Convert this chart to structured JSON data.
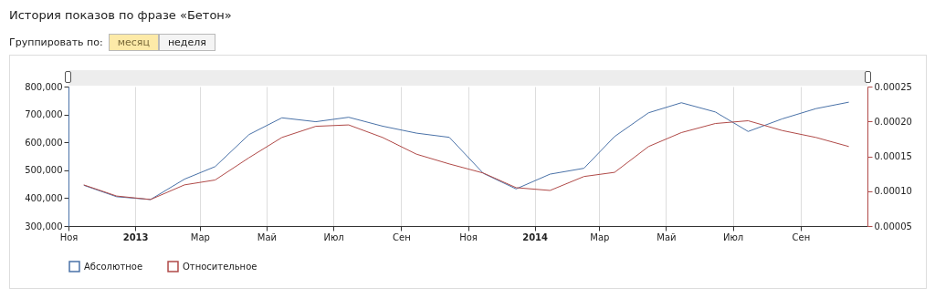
{
  "chart_data": {
    "type": "line",
    "title": "История показов по фразе «Бетон»",
    "annotations": [
      "Группировать по:",
      "месяц",
      "неделя"
    ],
    "x": [
      "2012-11-15",
      "2012-12-15",
      "2013-01-15",
      "2013-02-15",
      "2013-03-15",
      "2013-04-15",
      "2013-05-15",
      "2013-06-15",
      "2013-07-15",
      "2013-08-15",
      "2013-09-15",
      "2013-10-15",
      "2013-11-15",
      "2013-12-15",
      "2014-01-15",
      "2014-02-15",
      "2014-03-15",
      "2014-04-15",
      "2014-05-15",
      "2014-06-15",
      "2014-07-15",
      "2014-08-15",
      "2014-09-15",
      "2014-10-15"
    ],
    "xlim": [
      "2012-11-01",
      "2014-11-01"
    ],
    "xticks": [
      {
        "value": "2012-11-01",
        "label": "Ноя"
      },
      {
        "value": "2013-01-01",
        "label": "2013"
      },
      {
        "value": "2013-03-01",
        "label": "Мар"
      },
      {
        "value": "2013-05-01",
        "label": "Май"
      },
      {
        "value": "2013-07-01",
        "label": "Июл"
      },
      {
        "value": "2013-09-01",
        "label": "Сен"
      },
      {
        "value": "2013-11-01",
        "label": "Ноя"
      },
      {
        "value": "2014-01-01",
        "label": "2014"
      },
      {
        "value": "2014-03-01",
        "label": "Мар"
      },
      {
        "value": "2014-05-01",
        "label": "Май"
      },
      {
        "value": "2014-07-01",
        "label": "Июл"
      },
      {
        "value": "2014-09-01",
        "label": "Сен"
      }
    ],
    "ylim": [
      300000,
      800000
    ],
    "yticks": [
      {
        "value": 300000,
        "label": "300,000"
      },
      {
        "value": 400000,
        "label": "400,000"
      },
      {
        "value": 500000,
        "label": "500,000"
      },
      {
        "value": 600000,
        "label": "600,000"
      },
      {
        "value": 700000,
        "label": "700,000"
      },
      {
        "value": 800000,
        "label": "800,000"
      }
    ],
    "y2lim": [
      5e-05,
      0.00025
    ],
    "y2ticks": [
      {
        "value": 5e-05,
        "label": "0.00005"
      },
      {
        "value": 0.0001,
        "label": "0.00010"
      },
      {
        "value": 0.00015,
        "label": "0.00015"
      },
      {
        "value": 0.0002,
        "label": "0.00020"
      },
      {
        "value": 0.00025,
        "label": "0.00025"
      }
    ],
    "series": [
      {
        "name": "Абсолютное",
        "color": "#4a72a8",
        "values": [
          446000,
          405000,
          395000,
          468000,
          513000,
          628000,
          688000,
          674000,
          690000,
          658000,
          633000,
          618000,
          489000,
          433000,
          486000,
          507000,
          621000,
          706000,
          742000,
          709000,
          639000,
          684000,
          721000,
          744000
        ]
      },
      {
        "name": "Относительное",
        "color": "#b04a48",
        "axis": "y2",
        "values": [
          0.000109,
          9.3e-05,
          8.8e-05,
          0.000109,
          0.000116,
          0.000148,
          0.000177,
          0.000193,
          0.000195,
          0.000177,
          0.000153,
          0.000139,
          0.000126,
          0.000105,
          0.000101,
          0.000121,
          0.000127,
          0.000164,
          0.000184,
          0.000197,
          0.000201,
          0.000187,
          0.000177,
          0.000164
        ]
      }
    ],
    "grid": "x",
    "legend": "bottom left"
  }
}
